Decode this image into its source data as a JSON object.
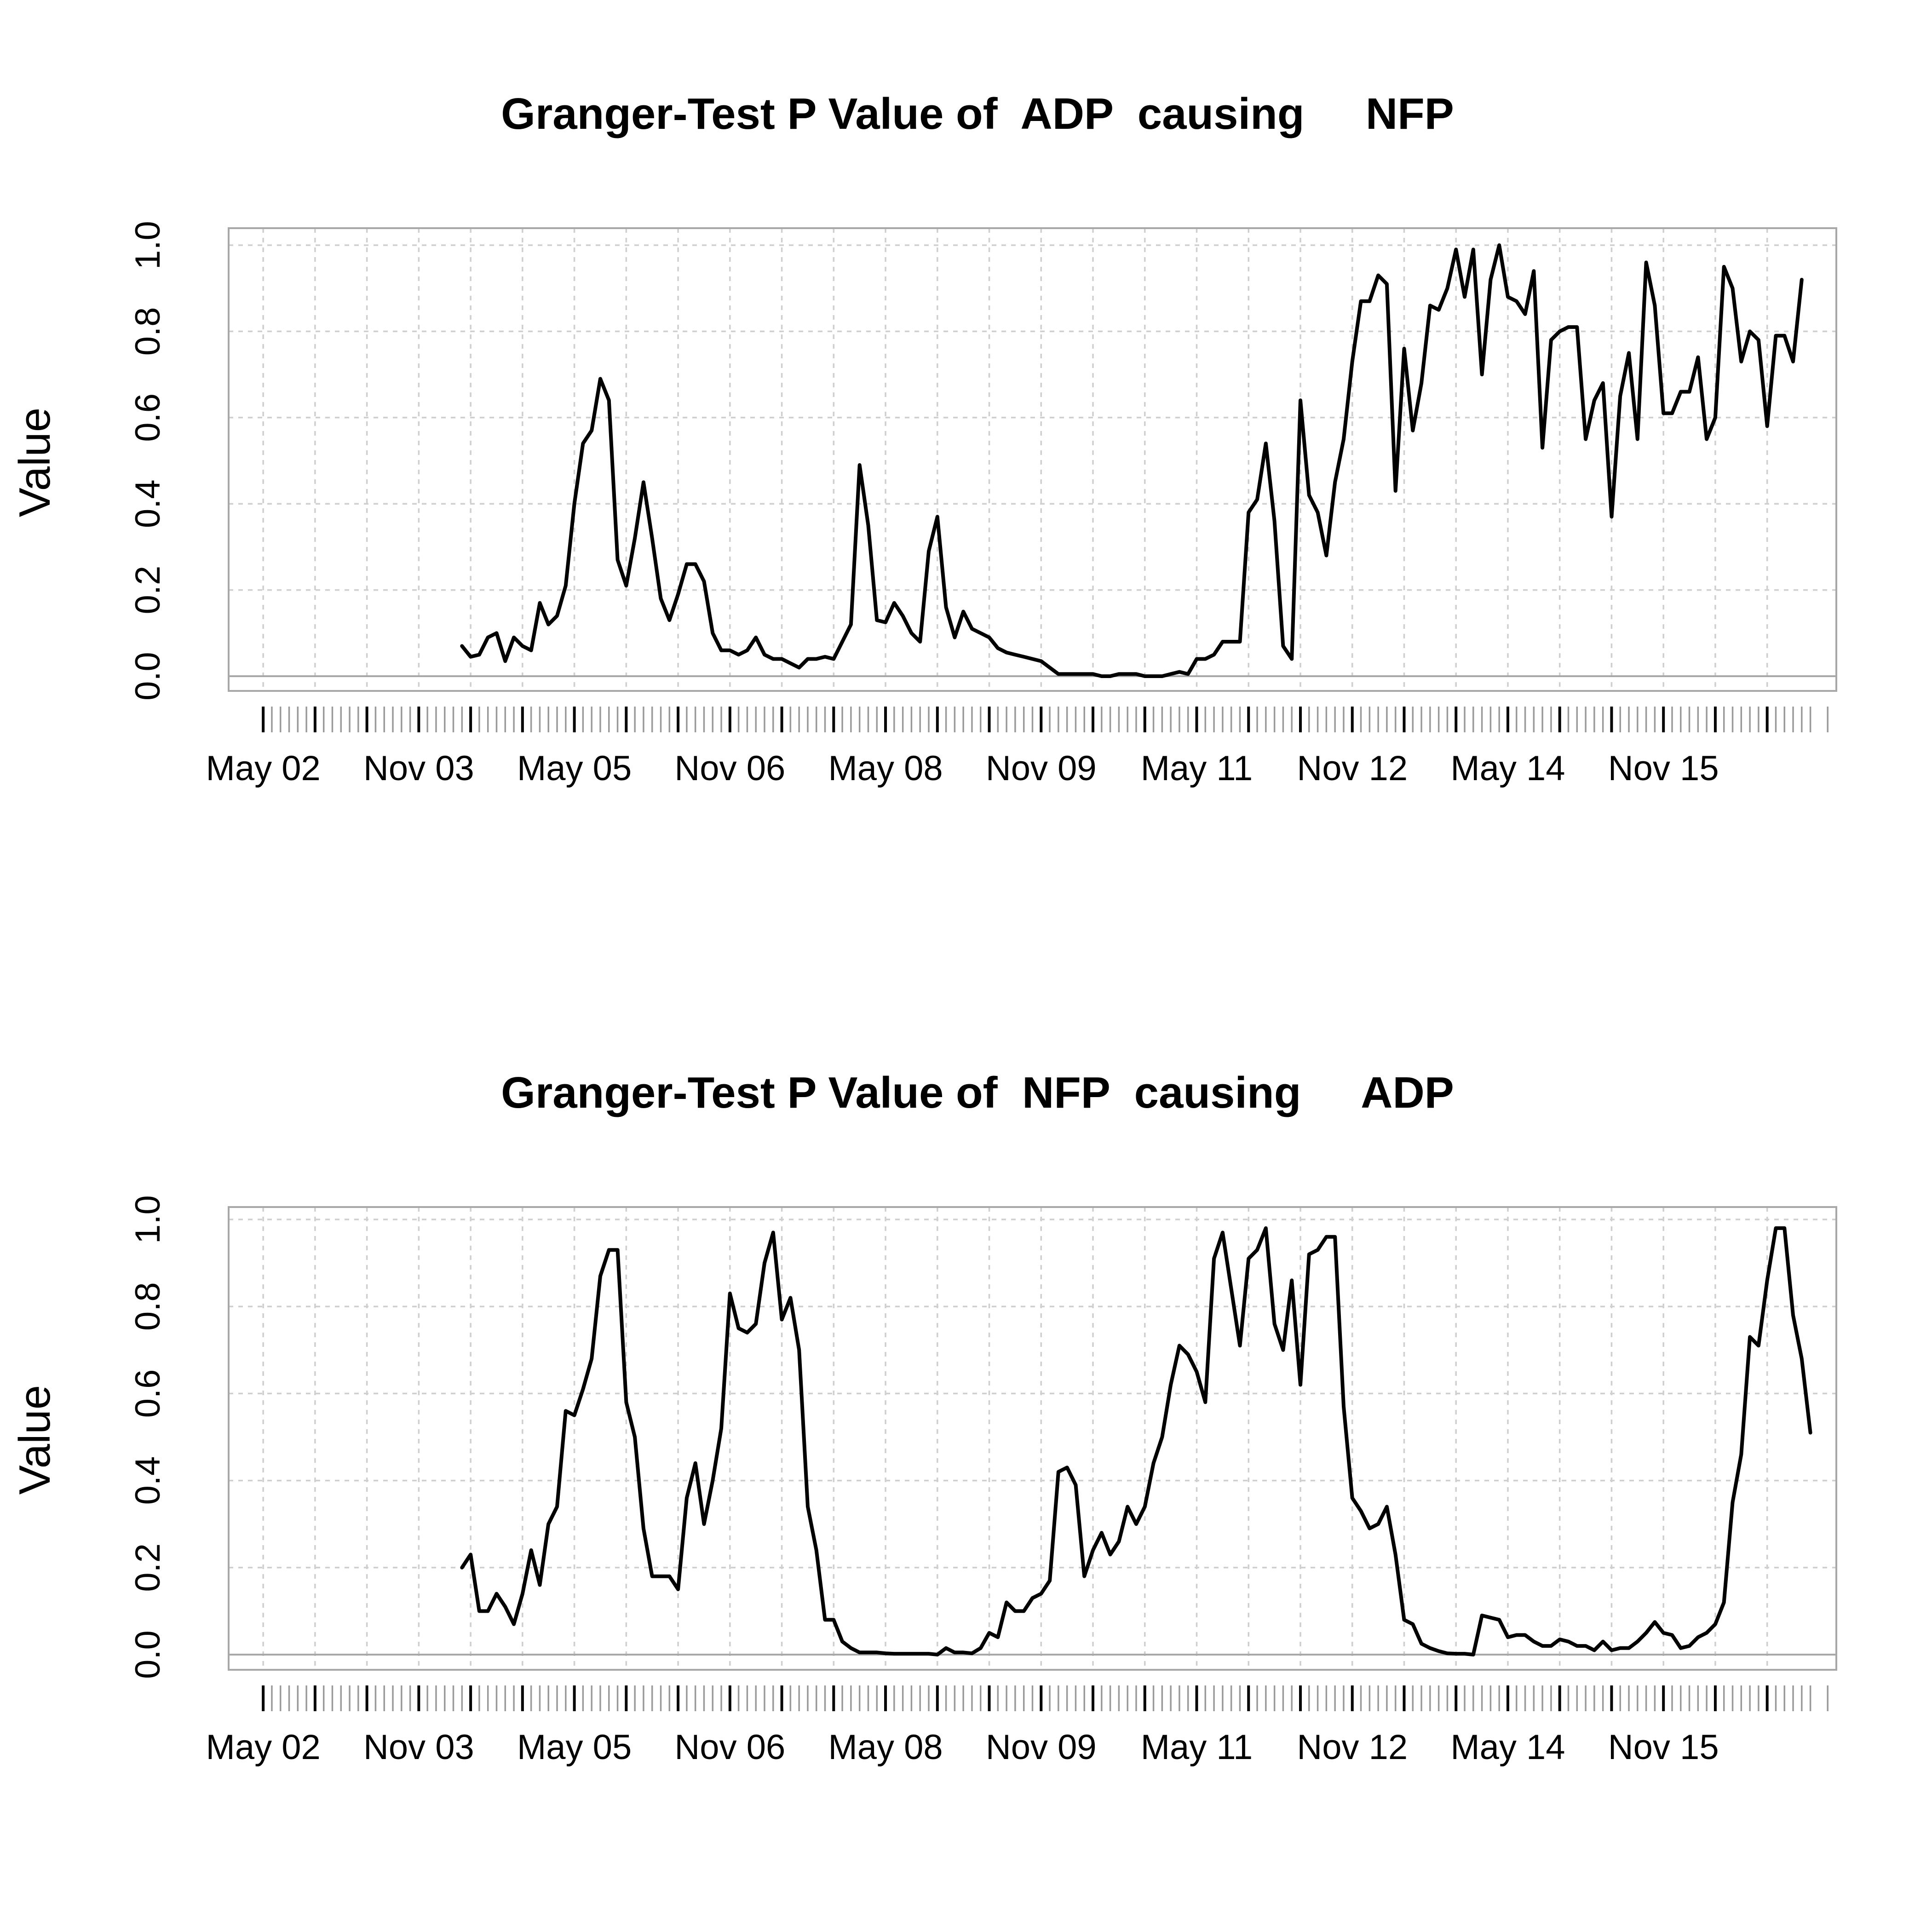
{
  "chart_data": [
    {
      "type": "line",
      "title": "Granger-Test P Value of  ADP  causing     NFP",
      "ylabel": "Value",
      "xlabel": "",
      "ylim": [
        0,
        1
      ],
      "yticks": [
        "0.0",
        "0.2",
        "0.4",
        "0.6",
        "0.8",
        "1.0"
      ],
      "x_range_months": [
        -4,
        182
      ],
      "x_tick_labels": [
        {
          "label": "May 02",
          "month": 0
        },
        {
          "label": "Nov 03",
          "month": 18
        },
        {
          "label": "May 05",
          "month": 36
        },
        {
          "label": "Nov 06",
          "month": 54
        },
        {
          "label": "May 08",
          "month": 72
        },
        {
          "label": "Nov 09",
          "month": 90
        },
        {
          "label": "May 11",
          "month": 108
        },
        {
          "label": "Nov 12",
          "month": 126
        },
        {
          "label": "May 14",
          "month": 144
        },
        {
          "label": "Nov 15",
          "month": 162
        }
      ],
      "grid": true,
      "series": [
        {
          "name": "ADP causing NFP",
          "start_month": 23,
          "values": [
            0.07,
            0.045,
            0.05,
            0.09,
            0.1,
            0.035,
            0.09,
            0.07,
            0.06,
            0.17,
            0.12,
            0.14,
            0.21,
            0.4,
            0.54,
            0.57,
            0.69,
            0.64,
            0.27,
            0.21,
            0.32,
            0.45,
            0.32,
            0.18,
            0.13,
            0.19,
            0.26,
            0.26,
            0.22,
            0.1,
            0.06,
            0.06,
            0.05,
            0.06,
            0.09,
            0.05,
            0.04,
            0.04,
            0.03,
            0.02,
            0.04,
            0.04,
            0.045,
            0.04,
            0.08,
            0.12,
            0.49,
            0.35,
            0.13,
            0.125,
            0.17,
            0.14,
            0.1,
            0.08,
            0.29,
            0.37,
            0.16,
            0.09,
            0.15,
            0.11,
            0.1,
            0.09,
            0.065,
            0.055,
            0.05,
            0.045,
            0.04,
            0.035,
            0.02,
            0.005,
            0.005,
            0.005,
            0.005,
            0.005,
            0.0,
            0.0,
            0.005,
            0.005,
            0.005,
            0.0,
            0.0,
            0.0,
            0.005,
            0.01,
            0.005,
            0.04,
            0.04,
            0.05,
            0.08,
            0.08,
            0.08,
            0.38,
            0.41,
            0.54,
            0.36,
            0.07,
            0.04,
            0.64,
            0.42,
            0.38,
            0.28,
            0.45,
            0.55,
            0.73,
            0.87,
            0.87,
            0.93,
            0.91,
            0.43,
            0.76,
            0.57,
            0.68,
            0.86,
            0.85,
            0.9,
            0.99,
            0.88,
            0.99,
            0.7,
            0.92,
            1.0,
            0.88,
            0.87,
            0.84,
            0.94,
            0.53,
            0.78,
            0.8,
            0.81,
            0.81,
            0.55,
            0.64,
            0.68,
            0.37,
            0.65,
            0.75,
            0.55,
            0.96,
            0.86,
            0.61,
            0.61,
            0.66,
            0.66,
            0.74,
            0.55,
            0.6,
            0.95,
            0.9,
            0.73,
            0.8,
            0.78,
            0.58,
            0.79,
            0.79,
            0.73,
            0.92
          ]
        }
      ]
    },
    {
      "type": "line",
      "title": "Granger-Test P Value of  NFP  causing     ADP",
      "ylabel": "Value",
      "xlabel": "",
      "ylim": [
        0,
        1
      ],
      "yticks": [
        "0.0",
        "0.2",
        "0.4",
        "0.6",
        "0.8",
        "1.0"
      ],
      "x_range_months": [
        -4,
        182
      ],
      "x_tick_labels": [
        {
          "label": "May 02",
          "month": 0
        },
        {
          "label": "Nov 03",
          "month": 18
        },
        {
          "label": "May 05",
          "month": 36
        },
        {
          "label": "Nov 06",
          "month": 54
        },
        {
          "label": "May 08",
          "month": 72
        },
        {
          "label": "Nov 09",
          "month": 90
        },
        {
          "label": "May 11",
          "month": 108
        },
        {
          "label": "Nov 12",
          "month": 126
        },
        {
          "label": "May 14",
          "month": 144
        },
        {
          "label": "Nov 15",
          "month": 162
        }
      ],
      "grid": true,
      "series": [
        {
          "name": "NFP causing ADP",
          "start_month": 23,
          "values": [
            0.2,
            0.23,
            0.1,
            0.1,
            0.14,
            0.11,
            0.07,
            0.14,
            0.24,
            0.16,
            0.3,
            0.34,
            0.56,
            0.55,
            0.61,
            0.68,
            0.87,
            0.93,
            0.93,
            0.58,
            0.5,
            0.29,
            0.18,
            0.18,
            0.18,
            0.15,
            0.36,
            0.44,
            0.3,
            0.4,
            0.52,
            0.83,
            0.75,
            0.74,
            0.76,
            0.9,
            0.97,
            0.77,
            0.82,
            0.7,
            0.34,
            0.24,
            0.08,
            0.08,
            0.03,
            0.015,
            0.005,
            0.005,
            0.005,
            0.003,
            0.002,
            0.002,
            0.002,
            0.002,
            0.002,
            0.0,
            0.015,
            0.005,
            0.005,
            0.003,
            0.015,
            0.05,
            0.04,
            0.12,
            0.1,
            0.1,
            0.13,
            0.14,
            0.17,
            0.42,
            0.43,
            0.39,
            0.18,
            0.24,
            0.28,
            0.23,
            0.26,
            0.34,
            0.3,
            0.34,
            0.44,
            0.5,
            0.62,
            0.71,
            0.69,
            0.65,
            0.58,
            0.91,
            0.97,
            0.84,
            0.71,
            0.91,
            0.93,
            0.98,
            0.76,
            0.7,
            0.86,
            0.62,
            0.92,
            0.93,
            0.96,
            0.96,
            0.57,
            0.36,
            0.33,
            0.29,
            0.3,
            0.34,
            0.23,
            0.08,
            0.07,
            0.025,
            0.015,
            0.008,
            0.003,
            0.002,
            0.002,
            0.0,
            0.09,
            0.085,
            0.08,
            0.04,
            0.045,
            0.045,
            0.03,
            0.02,
            0.02,
            0.035,
            0.03,
            0.02,
            0.02,
            0.01,
            0.03,
            0.01,
            0.015,
            0.015,
            0.03,
            0.05,
            0.075,
            0.05,
            0.045,
            0.015,
            0.02,
            0.04,
            0.05,
            0.07,
            0.12,
            0.35,
            0.46,
            0.73,
            0.71,
            0.86,
            0.98,
            0.98,
            0.78,
            0.68,
            0.51
          ]
        }
      ]
    }
  ]
}
